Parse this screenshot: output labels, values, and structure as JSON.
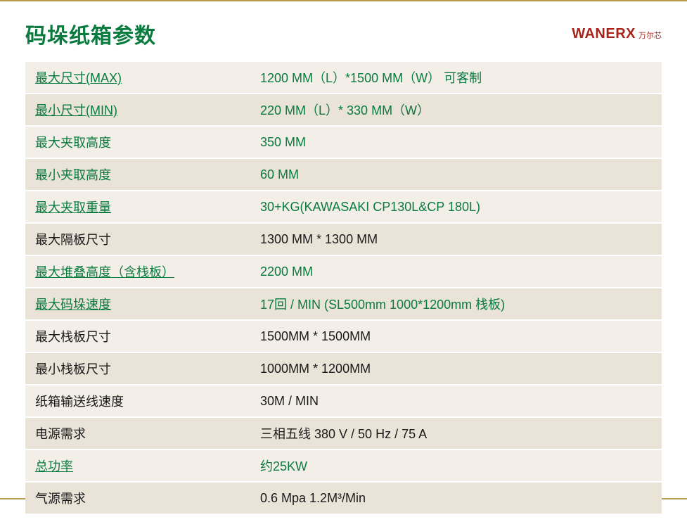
{
  "title": {
    "text": "码垛纸箱参数",
    "color": "#0a7b3e"
  },
  "brand": {
    "en": "WANERX",
    "zh": "万尔芯",
    "color": "#a8231a"
  },
  "colors": {
    "green": "#0a7b3e",
    "black": "#1a1a1a",
    "row_light": "#f3eee8",
    "row_dark": "#eae3d8",
    "frame": "#b89a4a"
  },
  "rows": [
    {
      "label": "最大尺寸(MAX)",
      "value": "1200 MM（L）*1500 MM（W）   可客制",
      "label_color": "green",
      "value_color": "green",
      "bg": "light",
      "underline": true
    },
    {
      "label": "最小尺寸(MIN)",
      "value": "220 MM（L）* 330 MM（W）",
      "label_color": "green",
      "value_color": "green",
      "bg": "dark",
      "underline": true
    },
    {
      "label": "最大夹取高度",
      "value": "350 MM",
      "label_color": "green",
      "value_color": "green",
      "bg": "light",
      "underline": false
    },
    {
      "label": "最小夹取高度",
      "value": "60 MM",
      "label_color": "green",
      "value_color": "green",
      "bg": "dark",
      "underline": false
    },
    {
      "label": "最大夹取重量",
      "value": "30+KG(KAWASAKI CP130L&CP 180L)",
      "label_color": "green",
      "value_color": "green",
      "bg": "light",
      "underline": true
    },
    {
      "label": "最大隔板尺寸",
      "value": "1300 MM * 1300 MM",
      "label_color": "black",
      "value_color": "black",
      "bg": "dark",
      "underline": false
    },
    {
      "label": "最大堆叠高度（含栈板）",
      "value": "2200 MM",
      "label_color": "green",
      "value_color": "green",
      "bg": "light",
      "underline": true
    },
    {
      "label": "最大码垛速度",
      "value": "17回  / MIN (SL500mm 1000*1200mm 栈板)",
      "label_color": "green",
      "value_color": "green",
      "bg": "dark",
      "underline": true
    },
    {
      "label": "最大栈板尺寸",
      "value": "1500MM * 1500MM",
      "label_color": "black",
      "value_color": "black",
      "bg": "light",
      "underline": false
    },
    {
      "label": "最小栈板尺寸",
      "value": "1000MM * 1200MM",
      "label_color": "black",
      "value_color": "black",
      "bg": "dark",
      "underline": false
    },
    {
      "label": "纸箱输送线速度",
      "value": "30M / MIN",
      "label_color": "black",
      "value_color": "black",
      "bg": "light",
      "underline": false
    },
    {
      "label": "电源需求",
      "value": "三相五线  380 V / 50 Hz / 75 A",
      "label_color": "black",
      "value_color": "black",
      "bg": "dark",
      "underline": false
    },
    {
      "label": "总功率",
      "value": "约25KW",
      "label_color": "green",
      "value_color": "green",
      "bg": "light",
      "underline": true
    },
    {
      "label": "气源需求",
      "value": "0.6 Mpa  1.2M³/Min",
      "label_color": "black",
      "value_color": "black",
      "bg": "dark",
      "underline": false
    }
  ]
}
